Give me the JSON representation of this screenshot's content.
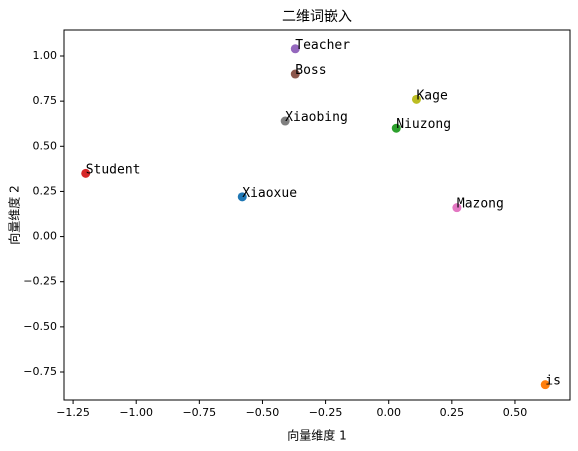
{
  "chart_data": {
    "type": "scatter",
    "title": "二维词嵌入",
    "xlabel": "向量维度 1",
    "ylabel": "向量维度 2",
    "labels": [
      "Xiaoxue",
      "is",
      "Niuzong",
      "Student",
      "Teacher",
      "Boss",
      "Mazong",
      "Xiaobing",
      "Kage"
    ],
    "x": [
      -0.58,
      0.62,
      0.03,
      -1.2,
      -0.37,
      -0.37,
      0.27,
      -0.41,
      0.11
    ],
    "values": [
      0.22,
      -0.82,
      0.6,
      0.35,
      1.04,
      0.9,
      0.16,
      0.64,
      0.76
    ],
    "colors": [
      "#1f77b4",
      "#ff7f0e",
      "#2ca02c",
      "#d62728",
      "#9467bd",
      "#8c564b",
      "#e377c2",
      "#7f7f7f",
      "#bcbd22"
    ],
    "xlim": [
      -1.286,
      0.718
    ],
    "ylim": [
      -0.905,
      1.144
    ],
    "xticks": [
      {
        "value": -1.25,
        "label": "−1.25"
      },
      {
        "value": -1,
        "label": "−1.00"
      },
      {
        "value": -0.75,
        "label": "−0.75"
      },
      {
        "value": -0.5,
        "label": "−0.50"
      },
      {
        "value": -0.25,
        "label": "−0.25"
      },
      {
        "value": 0,
        "label": "0.00"
      },
      0.25,
      {
        "value": 0.5,
        "label": "0.50"
      }
    ],
    "yticks": [
      {
        "value": -0.75,
        "label": "−0.75"
      },
      {
        "value": -0.5,
        "label": "−0.50"
      },
      {
        "value": -0.25,
        "label": "−0.25"
      },
      {
        "value": 0,
        "label": "0.00"
      },
      0.25,
      {
        "value": 0.5,
        "label": "0.50"
      },
      0.75,
      {
        "value": 1,
        "label": "1.00"
      }
    ]
  }
}
